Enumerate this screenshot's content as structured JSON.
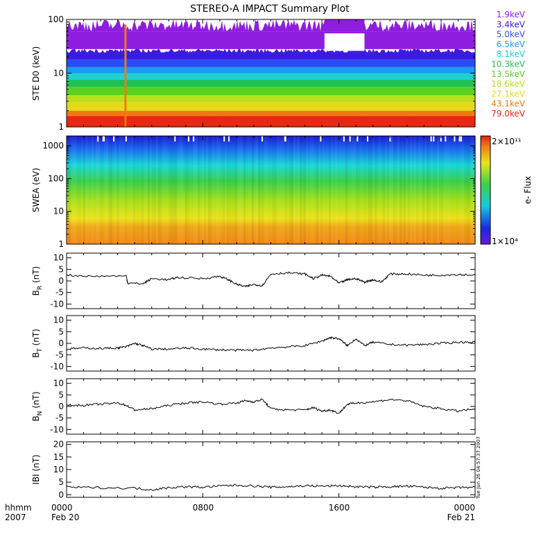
{
  "title": "STEREO-A IMPACT Summary Plot",
  "footer": {
    "row1_label": "hhmm",
    "row2_label": "2007",
    "times": [
      "0000",
      "0800",
      "1600",
      "0000"
    ],
    "date_start": "Feb 20",
    "date_end": "Feb 21"
  },
  "side_stamp": "Tue Jun 26 04:57:37 2007",
  "colors": {
    "frame": "#000000",
    "background": "#ffffff"
  },
  "chart_data": [
    {
      "type": "line",
      "name": "ste",
      "ylabel": "STE D0 (keV)",
      "yscale": "log",
      "ylim": [
        1,
        100
      ],
      "yticks": [
        "1",
        "10",
        "100"
      ],
      "x_range_hours": [
        0,
        24
      ],
      "energy_legend": [
        {
          "label": "1.9keV",
          "color": "#8f1de0"
        },
        {
          "label": "3.4keV",
          "color": "#3a1ae0"
        },
        {
          "label": "5.0keV",
          "color": "#2a4cf2"
        },
        {
          "label": "6.5keV",
          "color": "#1a9af0"
        },
        {
          "label": "8.1keV",
          "color": "#1fd0d0"
        },
        {
          "label": "10.3keV",
          "color": "#1fc05a"
        },
        {
          "label": "13.5keV",
          "color": "#5ad01f"
        },
        {
          "label": "18.6keV",
          "color": "#b8e01a"
        },
        {
          "label": "27.1keV",
          "color": "#e6d81a"
        },
        {
          "label": "43.1keV",
          "color": "#f07a10"
        },
        {
          "label": "79.0keV",
          "color": "#e82810"
        }
      ],
      "bands": [
        {
          "color": "#e82810",
          "lo": 1.0,
          "hi": 1.6
        },
        {
          "color": "#f07a10",
          "lo": 1.6,
          "hi": 2.0
        },
        {
          "color": "#e6d81a",
          "lo": 2.0,
          "hi": 2.9
        },
        {
          "color": "#b8e01a",
          "lo": 2.9,
          "hi": 3.9
        },
        {
          "color": "#5ad01f",
          "lo": 3.9,
          "hi": 5.6
        },
        {
          "color": "#1fc05a",
          "lo": 5.6,
          "hi": 7.6
        },
        {
          "color": "#1fd0d0",
          "lo": 7.6,
          "hi": 10.0
        },
        {
          "color": "#1a9af0",
          "lo": 10.0,
          "hi": 13.0
        },
        {
          "color": "#2a4cf2",
          "lo": 13.0,
          "hi": 18.0
        },
        {
          "color": "#3a1ae0",
          "lo": 18.0,
          "hi": 24.0
        },
        {
          "color": "#8f1de0",
          "lo": 28.0,
          "hi": 60.0
        }
      ]
    },
    {
      "type": "heatmap",
      "name": "swea",
      "ylabel": "SWEA (eV)",
      "yscale": "log",
      "ylim": [
        1,
        2000
      ],
      "yticks": [
        "1",
        "10",
        "100",
        "1000"
      ],
      "colorbar_label": "e- Flux",
      "colorbar_max": "2×10¹¹",
      "colorbar_min": "1×10⁴"
    },
    {
      "type": "line",
      "name": "br",
      "ylabel": "B_R (nT)",
      "ylim": [
        -12,
        12
      ],
      "yticks": [
        -10,
        -5,
        0,
        5,
        10
      ],
      "x": [
        0,
        1.5,
        3.5,
        3.6,
        4.5,
        5,
        6,
        6.5,
        8,
        9,
        9.5,
        10,
        10.5,
        11,
        11.5,
        12,
        13,
        14,
        14.5,
        15,
        15.5,
        16,
        16.5,
        17,
        17.5,
        18,
        18.5,
        19,
        20,
        21,
        22,
        23,
        24
      ],
      "y": [
        2.5,
        2.0,
        2.2,
        -1.0,
        -1.2,
        1.0,
        0.5,
        1.5,
        1.0,
        2.0,
        0.5,
        -1.5,
        -2.5,
        -1.5,
        -2.0,
        3.0,
        3.5,
        3.0,
        1.0,
        2.5,
        2.0,
        -1.0,
        0.5,
        1.0,
        -0.5,
        0.5,
        -0.5,
        3.0,
        3.0,
        2.5,
        2.5,
        2.8,
        2.5
      ]
    },
    {
      "type": "line",
      "name": "bt",
      "ylabel": "B_T (nT)",
      "ylim": [
        -12,
        12
      ],
      "yticks": [
        -10,
        -5,
        0,
        5,
        10
      ],
      "x": [
        0,
        1,
        2,
        3,
        3.5,
        4,
        4.5,
        5,
        6,
        7,
        8,
        9,
        10,
        11,
        12,
        13,
        14,
        15,
        15.5,
        16,
        16.5,
        17,
        17.5,
        18,
        19,
        20,
        21,
        22,
        23,
        24
      ],
      "y": [
        -2.5,
        -2.0,
        -2.2,
        -2.0,
        -1.5,
        0.0,
        -1.0,
        -2.5,
        -2.5,
        -2.0,
        -2.5,
        -2.8,
        -3.0,
        -3.0,
        -2.0,
        -1.5,
        -1.0,
        1.0,
        2.5,
        2.0,
        -1.0,
        2.0,
        -1.0,
        0.5,
        -0.5,
        -0.8,
        -0.5,
        0.0,
        0.5,
        0.5
      ]
    },
    {
      "type": "line",
      "name": "bn",
      "ylabel": "B_N (nT)",
      "ylim": [
        -12,
        12
      ],
      "yticks": [
        -10,
        -5,
        0,
        5,
        10
      ],
      "x": [
        0,
        1,
        2,
        3,
        3.5,
        4,
        5,
        6,
        7,
        8,
        9,
        10,
        10.5,
        11,
        11.5,
        12,
        13,
        14,
        14.5,
        15,
        15.5,
        16,
        16.5,
        17,
        18,
        19,
        20,
        21,
        22,
        23,
        24
      ],
      "y": [
        0.5,
        0.5,
        1.0,
        1.5,
        0.5,
        -1.5,
        -1.0,
        0.5,
        1.5,
        2.0,
        1.0,
        1.5,
        2.5,
        2.0,
        3.0,
        -1.0,
        -1.5,
        -1.5,
        -0.5,
        -2.0,
        -1.5,
        -3.0,
        1.0,
        1.5,
        2.0,
        3.0,
        2.5,
        0.0,
        -1.0,
        -2.0,
        -1.0
      ]
    },
    {
      "type": "line",
      "name": "bmag",
      "ylabel": "|B| (nT)",
      "ylim": [
        -1,
        21
      ],
      "yticks": [
        0,
        5,
        10,
        15,
        20
      ],
      "x": [
        0,
        2,
        4,
        5,
        6,
        7,
        8,
        9,
        10,
        11,
        12,
        13,
        14,
        15,
        16,
        17,
        18,
        19,
        20,
        21,
        22,
        23,
        24
      ],
      "y": [
        3.0,
        2.8,
        2.6,
        2.0,
        2.8,
        3.2,
        3.0,
        3.5,
        3.8,
        3.5,
        3.0,
        3.2,
        3.6,
        3.4,
        3.6,
        3.2,
        3.0,
        3.2,
        3.4,
        3.0,
        2.6,
        2.8,
        3.0
      ]
    }
  ]
}
